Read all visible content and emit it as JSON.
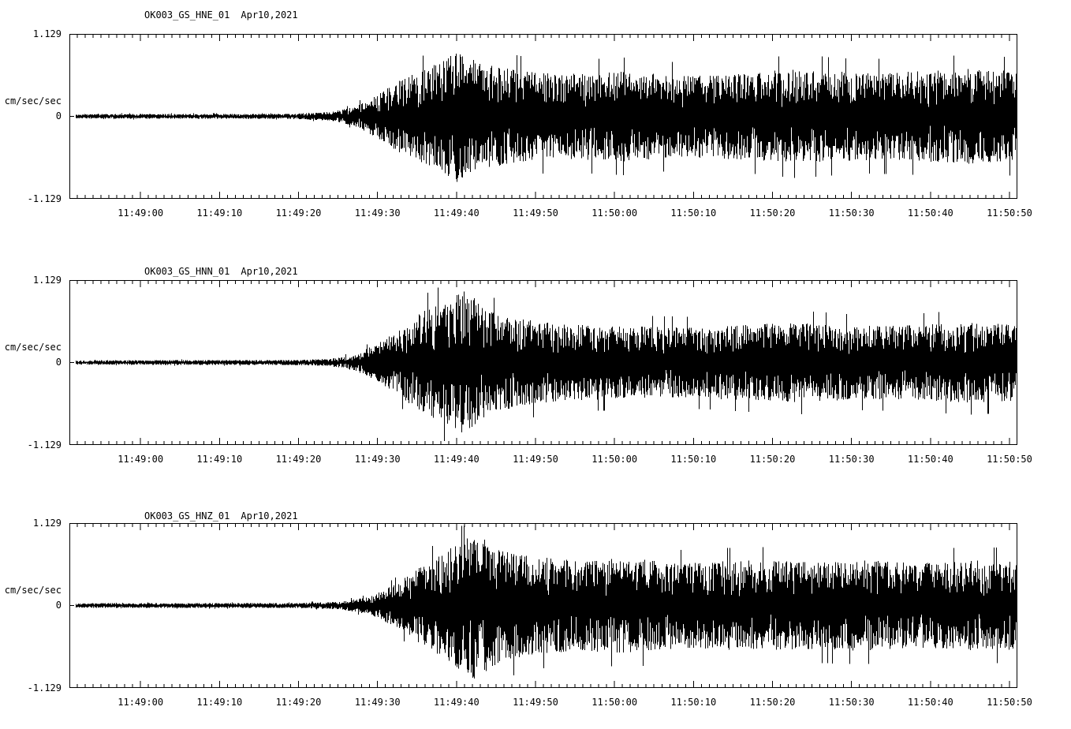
{
  "page": {
    "background": "#ffffff",
    "trace_color": "#000000",
    "axis_color": "#000000"
  },
  "time_axis": {
    "tick_labels": [
      "11:49:00",
      "11:49:10",
      "11:49:20",
      "11:49:30",
      "11:49:40",
      "11:49:50",
      "11:50:00",
      "11:50:10",
      "11:50:20",
      "11:50:30",
      "11:50:40",
      "11:50:50"
    ],
    "tick_seconds": [
      9,
      19,
      29,
      39,
      49,
      59,
      69,
      79,
      89,
      99,
      109,
      119
    ],
    "total_seconds": 120,
    "minor_tick_interval_seconds": 1
  },
  "chart_data": [
    {
      "type": "line",
      "title": "OK003_GS_HNE_01",
      "date": "Apr10,2021",
      "ylabel": "cm/sec/sec",
      "ylim": [
        -1.129,
        1.129
      ],
      "y_tick_labels": [
        "1.129",
        "0",
        "-1.129"
      ],
      "y_zero_label": "0",
      "seed": 11,
      "envelope": {
        "t": [
          0,
          28,
          33,
          36,
          39,
          42,
          45,
          47,
          49,
          52,
          56,
          62,
          70,
          78,
          86,
          92,
          100,
          108,
          114,
          120
        ],
        "a": [
          0.03,
          0.035,
          0.06,
          0.13,
          0.3,
          0.52,
          0.65,
          0.75,
          0.9,
          0.72,
          0.65,
          0.58,
          0.62,
          0.56,
          0.6,
          0.65,
          0.6,
          0.62,
          0.65,
          0.62
        ]
      }
    },
    {
      "type": "line",
      "title": "OK003_GS_HNN_01",
      "date": "Apr10,2021",
      "ylabel": "cm/sec/sec",
      "ylim": [
        -1.129,
        1.129
      ],
      "y_tick_labels": [
        "1.129",
        "0",
        "-1.129"
      ],
      "y_zero_label": "0",
      "seed": 22,
      "envelope": {
        "t": [
          0,
          28,
          33,
          36,
          39,
          42,
          45,
          48,
          50,
          53,
          57,
          63,
          70,
          78,
          86,
          92,
          100,
          108,
          114,
          120
        ],
        "a": [
          0.03,
          0.035,
          0.05,
          0.11,
          0.26,
          0.48,
          0.72,
          0.85,
          1.0,
          0.7,
          0.6,
          0.52,
          0.5,
          0.48,
          0.52,
          0.55,
          0.5,
          0.52,
          0.55,
          0.52
        ]
      }
    },
    {
      "type": "line",
      "title": "OK003_GS_HNZ_01",
      "date": "Apr10,2021",
      "ylabel": "cm/sec/sec",
      "ylim": [
        -1.129,
        1.129
      ],
      "y_tick_labels": [
        "1.129",
        "0",
        "-1.129"
      ],
      "y_zero_label": "0",
      "seed": 33,
      "envelope": {
        "t": [
          0,
          29,
          34,
          38,
          41,
          44,
          47,
          49,
          51,
          54,
          58,
          64,
          71,
          78,
          86,
          93,
          100,
          108,
          114,
          120
        ],
        "a": [
          0.03,
          0.035,
          0.05,
          0.12,
          0.28,
          0.5,
          0.7,
          0.85,
          1.02,
          0.8,
          0.68,
          0.62,
          0.65,
          0.58,
          0.62,
          0.6,
          0.62,
          0.58,
          0.62,
          0.6
        ]
      }
    }
  ]
}
